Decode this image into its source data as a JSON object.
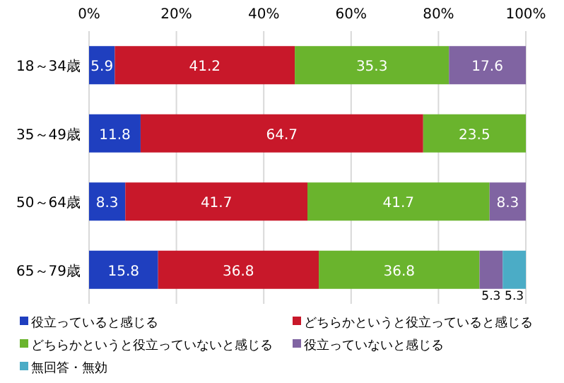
{
  "chart_data": {
    "type": "bar",
    "orientation": "horizontal",
    "stacked": true,
    "categories": [
      "18～34歳",
      "35～49歳",
      "50～64歳",
      "65～79歳"
    ],
    "series": [
      {
        "name": "役立っていると感じる",
        "color": "#1f3fbf",
        "values": [
          5.9,
          11.8,
          8.3,
          15.8
        ]
      },
      {
        "name": "どちらかというと役立っていると感じる",
        "color": "#c8182a",
        "values": [
          41.2,
          64.7,
          41.7,
          36.8
        ]
      },
      {
        "name": "どちらかというと役立っていないと感じる",
        "color": "#6ab42d",
        "values": [
          35.3,
          23.5,
          41.7,
          36.8
        ]
      },
      {
        "name": "役立っていないと感じる",
        "color": "#8064a2",
        "values": [
          17.6,
          null,
          8.3,
          5.3
        ]
      },
      {
        "name": "無回答・無効",
        "color": "#4bacc6",
        "values": [
          null,
          null,
          null,
          5.3
        ]
      }
    ],
    "xlim": [
      0,
      100
    ],
    "xticks": [
      {
        "value": 0,
        "label": "0%"
      },
      {
        "value": 20,
        "label": "20%"
      },
      {
        "value": 40,
        "label": "40%"
      },
      {
        "value": 60,
        "label": "60%"
      },
      {
        "value": 80,
        "label": "80%"
      },
      {
        "value": 100,
        "label": "100%"
      }
    ],
    "grid": "x",
    "legend": "bottom",
    "data_labels": true
  }
}
